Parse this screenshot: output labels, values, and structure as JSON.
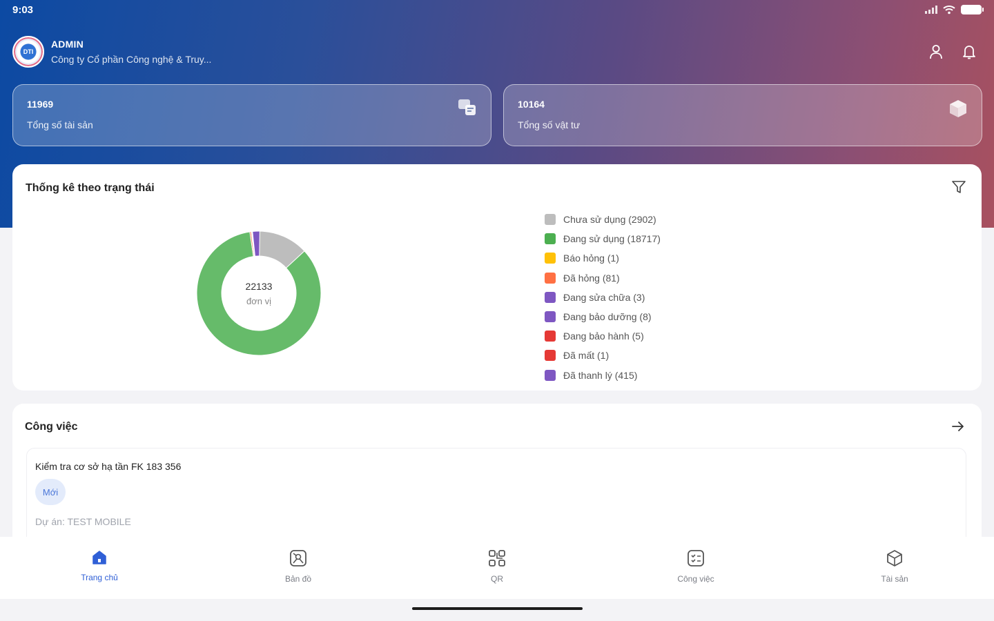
{
  "status_bar": {
    "time": "9:03"
  },
  "header": {
    "user_name": "ADMIN",
    "company": "Công ty Cổ phần Công nghệ & Truy...",
    "avatar_text": "DTI",
    "actions": [
      "user-icon",
      "bell-icon"
    ]
  },
  "stats": [
    {
      "value": "11969",
      "label": "Tổng số tài sản",
      "icon": "assets-icon"
    },
    {
      "value": "10164",
      "label": "Tổng số vật tư",
      "icon": "box-icon"
    }
  ],
  "status_panel": {
    "title": "Thống kê theo trạng thái",
    "total": "22133",
    "unit": "đơn vị",
    "legend": [
      {
        "label": "Chưa sử dụng (2902)",
        "color": "#bdbdbd"
      },
      {
        "label": "Đang sử dụng (18717)",
        "color": "#4caf50"
      },
      {
        "label": "Báo hỏng (1)",
        "color": "#ffc107"
      },
      {
        "label": "Đã hỏng (81)",
        "color": "#ff7043"
      },
      {
        "label": "Đang sửa chữa (3)",
        "color": "#7e57c2"
      },
      {
        "label": "Đang bảo dưỡng (8)",
        "color": "#7e57c2"
      },
      {
        "label": "Đang bảo hành (5)",
        "color": "#e53935"
      },
      {
        "label": "Đã mất (1)",
        "color": "#e53935"
      },
      {
        "label": "Đã thanh lý (415)",
        "color": "#7e57c2"
      }
    ]
  },
  "chart_data": {
    "type": "pie",
    "categories": [
      "Chưa sử dụng",
      "Đang sử dụng",
      "Báo hỏng",
      "Đã hỏng",
      "Đang sửa chữa",
      "Đang bảo dưỡng",
      "Đang bảo hành",
      "Đã mất",
      "Đã thanh lý"
    ],
    "values": [
      2902,
      18717,
      1,
      81,
      3,
      8,
      5,
      1,
      415
    ],
    "colors": [
      "#bdbdbd",
      "#66bb6a",
      "#ffc107",
      "#ff7043",
      "#7e57c2",
      "#7e57c2",
      "#e53935",
      "#e53935",
      "#7e57c2"
    ],
    "title": "Thống kê theo trạng thái",
    "legend": "right"
  },
  "tasks_panel": {
    "title": "Công việc",
    "task": {
      "name": "Kiểm tra cơ sở hạ tần FK 183 356",
      "status": "Mới",
      "project": "Dự án: TEST MOBILE"
    }
  },
  "bottom_nav": [
    {
      "label": "Trang chủ",
      "icon": "home-icon",
      "active": true
    },
    {
      "label": "Bản đồ",
      "icon": "map-icon",
      "active": false
    },
    {
      "label": "QR",
      "icon": "qr-icon",
      "active": false
    },
    {
      "label": "Công việc",
      "icon": "task-icon",
      "active": false
    },
    {
      "label": "Tài sản",
      "icon": "cube-icon",
      "active": false
    }
  ]
}
